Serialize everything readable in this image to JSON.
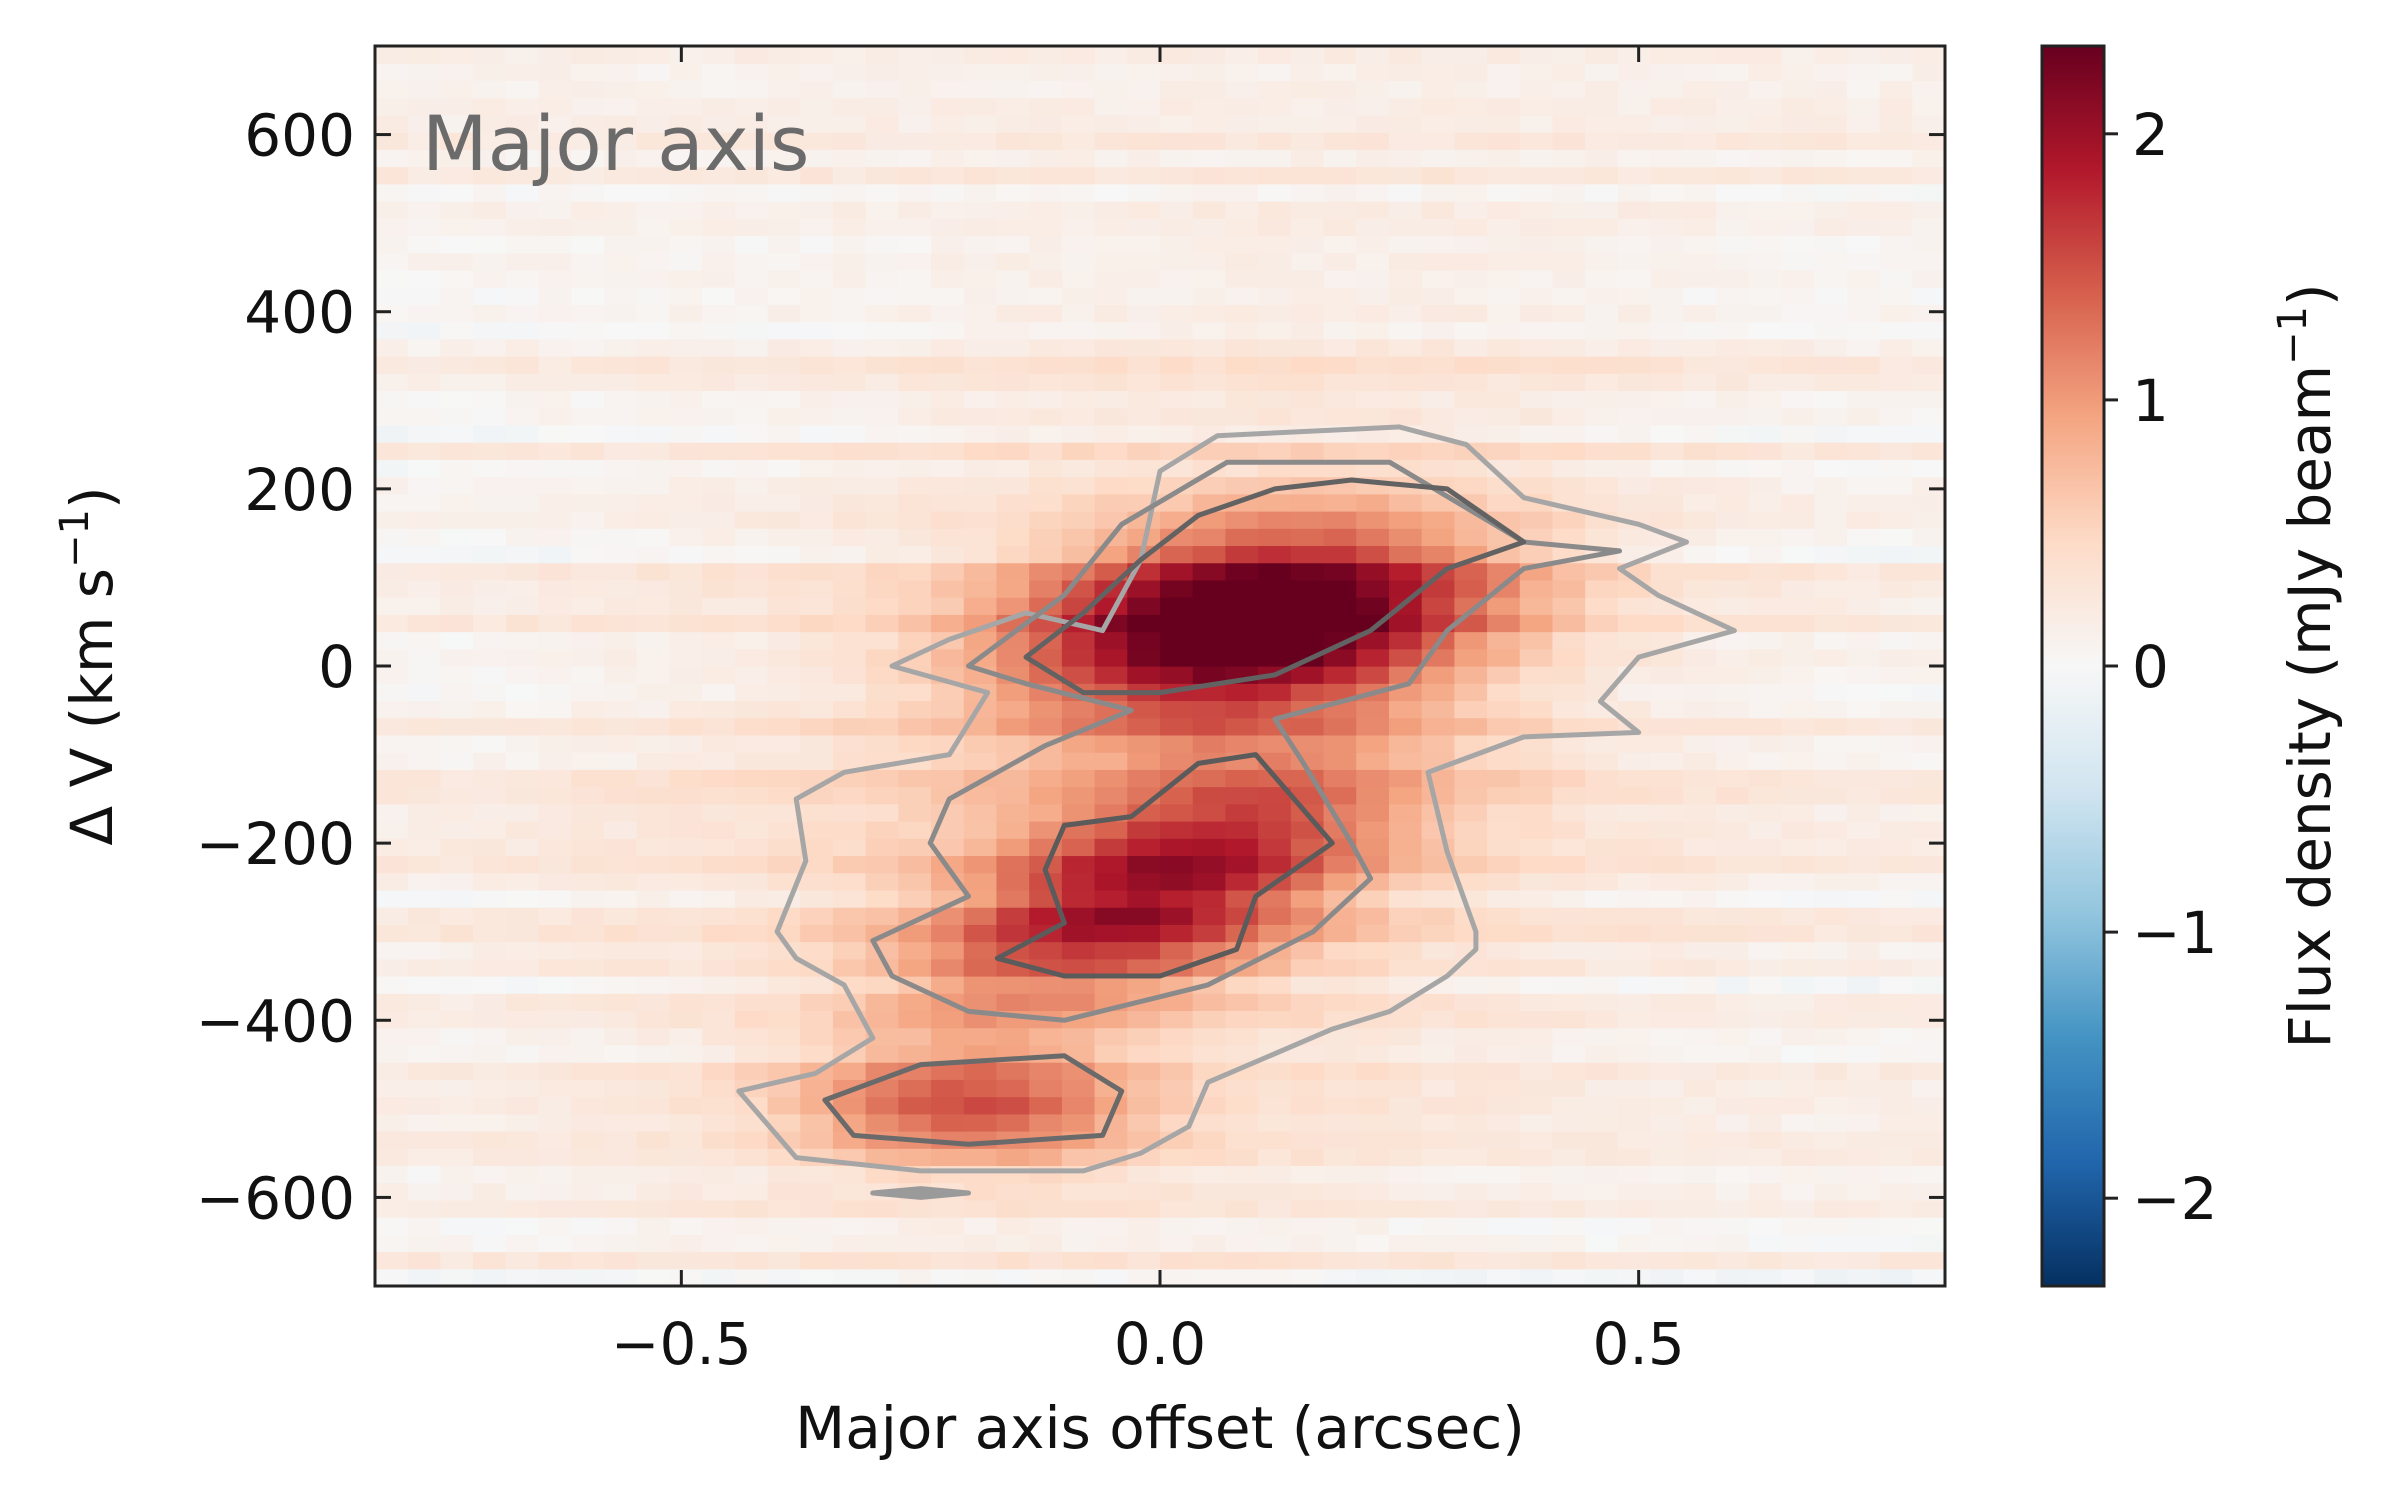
{
  "chart_data": {
    "type": "heatmap",
    "title": "",
    "panel_label": "Major axis",
    "xlabel": "Major axis offset (arcsec)",
    "ylabel": "Δ V (km s",
    "ylabel_sup": "−1",
    "ylabel_close": ")",
    "xlim": [
      -0.82,
      0.82
    ],
    "ylim": [
      -700,
      700
    ],
    "x_ticks": [
      {
        "value": -0.5,
        "label": "−0.5"
      },
      {
        "value": 0.0,
        "label": "0.0"
      },
      {
        "value": 0.5,
        "label": "0.5"
      }
    ],
    "y_ticks": [
      {
        "value": 600,
        "label": "600"
      },
      {
        "value": 400,
        "label": "400"
      },
      {
        "value": 200,
        "label": "200"
      },
      {
        "value": 0,
        "label": "0"
      },
      {
        "value": -200,
        "label": "−200"
      },
      {
        "value": -400,
        "label": "−400"
      },
      {
        "value": -600,
        "label": "−600"
      }
    ],
    "colorbar": {
      "label": "Flux density (mJy beam",
      "label_sup": "−1",
      "label_close": ")",
      "range": [
        -2.33,
        2.33
      ],
      "colormap": "RdBu_r",
      "ticks": [
        {
          "value": 2,
          "label": "2"
        },
        {
          "value": 1,
          "label": "1"
        },
        {
          "value": 0,
          "label": "0"
        },
        {
          "value": -1,
          "label": "−1"
        },
        {
          "value": -2,
          "label": "−2"
        }
      ]
    },
    "emission_components": [
      {
        "x0": 0.1,
        "v0": 50,
        "sx": 0.16,
        "sv": 75,
        "peak": 2.35,
        "tilt": 180
      },
      {
        "x0": -0.01,
        "v0": -255,
        "sx": 0.13,
        "sv": 95,
        "peak": 1.55,
        "tilt": 100
      },
      {
        "x0": -0.2,
        "v0": -500,
        "sx": 0.12,
        "sv": 45,
        "peak": 1.1,
        "tilt": 0
      },
      {
        "x0": 0.0,
        "v0": -120,
        "sx": 0.32,
        "sv": 330,
        "peak": 0.45,
        "tilt": 420
      }
    ],
    "contours": [
      {
        "level": "outer",
        "color": "#a6a6a6",
        "points": [
          [
            -0.06,
            40
          ],
          [
            -0.02,
            120
          ],
          [
            0.0,
            220
          ],
          [
            0.06,
            260
          ],
          [
            0.25,
            270
          ],
          [
            0.32,
            250
          ],
          [
            0.38,
            190
          ],
          [
            0.5,
            160
          ],
          [
            0.55,
            140
          ],
          [
            0.48,
            110
          ],
          [
            0.52,
            80
          ],
          [
            0.6,
            40
          ],
          [
            0.5,
            10
          ],
          [
            0.46,
            -40
          ],
          [
            0.5,
            -75
          ],
          [
            0.38,
            -80
          ],
          [
            0.28,
            -120
          ],
          [
            0.3,
            -210
          ],
          [
            0.33,
            -300
          ],
          [
            0.33,
            -320
          ],
          [
            0.3,
            -350
          ],
          [
            0.24,
            -390
          ],
          [
            0.18,
            -410
          ],
          [
            0.05,
            -470
          ],
          [
            0.03,
            -520
          ],
          [
            -0.02,
            -550
          ],
          [
            -0.08,
            -570
          ],
          [
            -0.25,
            -570
          ],
          [
            -0.38,
            -555
          ],
          [
            -0.44,
            -480
          ],
          [
            -0.36,
            -460
          ],
          [
            -0.3,
            -420
          ],
          [
            -0.33,
            -360
          ],
          [
            -0.38,
            -330
          ],
          [
            -0.4,
            -300
          ],
          [
            -0.37,
            -220
          ],
          [
            -0.38,
            -150
          ],
          [
            -0.33,
            -120
          ],
          [
            -0.22,
            -100
          ],
          [
            -0.18,
            -30
          ],
          [
            -0.28,
            0
          ],
          [
            -0.22,
            30
          ],
          [
            -0.14,
            60
          ]
        ]
      },
      {
        "level": "mid",
        "color": "#8a8a8a",
        "points": [
          [
            -0.2,
            0
          ],
          [
            -0.1,
            80
          ],
          [
            -0.04,
            160
          ],
          [
            0.07,
            230
          ],
          [
            0.24,
            230
          ],
          [
            0.38,
            140
          ],
          [
            0.48,
            130
          ],
          [
            0.38,
            110
          ],
          [
            0.3,
            40
          ],
          [
            0.26,
            -20
          ],
          [
            0.12,
            -60
          ],
          [
            0.15,
            -110
          ],
          [
            0.2,
            -200
          ],
          [
            0.22,
            -240
          ],
          [
            0.16,
            -300
          ],
          [
            0.05,
            -360
          ],
          [
            -0.1,
            -400
          ],
          [
            -0.2,
            -390
          ],
          [
            -0.28,
            -350
          ],
          [
            -0.3,
            -310
          ],
          [
            -0.2,
            -260
          ],
          [
            -0.24,
            -200
          ],
          [
            -0.22,
            -150
          ],
          [
            -0.12,
            -90
          ],
          [
            -0.03,
            -50
          ],
          [
            -0.14,
            -20
          ]
        ]
      },
      {
        "level": "inner",
        "color": "#626262",
        "points": [
          [
            -0.14,
            10
          ],
          [
            -0.08,
            60
          ],
          [
            -0.02,
            120
          ],
          [
            0.04,
            170
          ],
          [
            0.12,
            200
          ],
          [
            0.2,
            210
          ],
          [
            0.3,
            200
          ],
          [
            0.38,
            140
          ],
          [
            0.3,
            110
          ],
          [
            0.22,
            40
          ],
          [
            0.12,
            -10
          ],
          [
            0.0,
            -30
          ],
          [
            -0.08,
            -30
          ]
        ]
      },
      {
        "level": "inner2",
        "color": "#5b5b5b",
        "points": [
          [
            -0.03,
            -170
          ],
          [
            0.04,
            -110
          ],
          [
            0.1,
            -100
          ],
          [
            0.18,
            -200
          ],
          [
            0.1,
            -260
          ],
          [
            0.08,
            -320
          ],
          [
            0.0,
            -350
          ],
          [
            -0.1,
            -350
          ],
          [
            -0.17,
            -330
          ],
          [
            -0.1,
            -290
          ],
          [
            -0.12,
            -230
          ],
          [
            -0.1,
            -180
          ]
        ]
      },
      {
        "level": "blob",
        "color": "#6a6a6a",
        "points": [
          [
            -0.35,
            -490
          ],
          [
            -0.25,
            -450
          ],
          [
            -0.1,
            -440
          ],
          [
            -0.04,
            -480
          ],
          [
            -0.06,
            -530
          ],
          [
            -0.2,
            -540
          ],
          [
            -0.32,
            -530
          ]
        ]
      },
      {
        "level": "dot",
        "color": "#9a9a9a",
        "points": [
          [
            -0.3,
            -595
          ],
          [
            -0.25,
            -590
          ],
          [
            -0.2,
            -595
          ],
          [
            -0.25,
            -600
          ]
        ]
      }
    ]
  }
}
